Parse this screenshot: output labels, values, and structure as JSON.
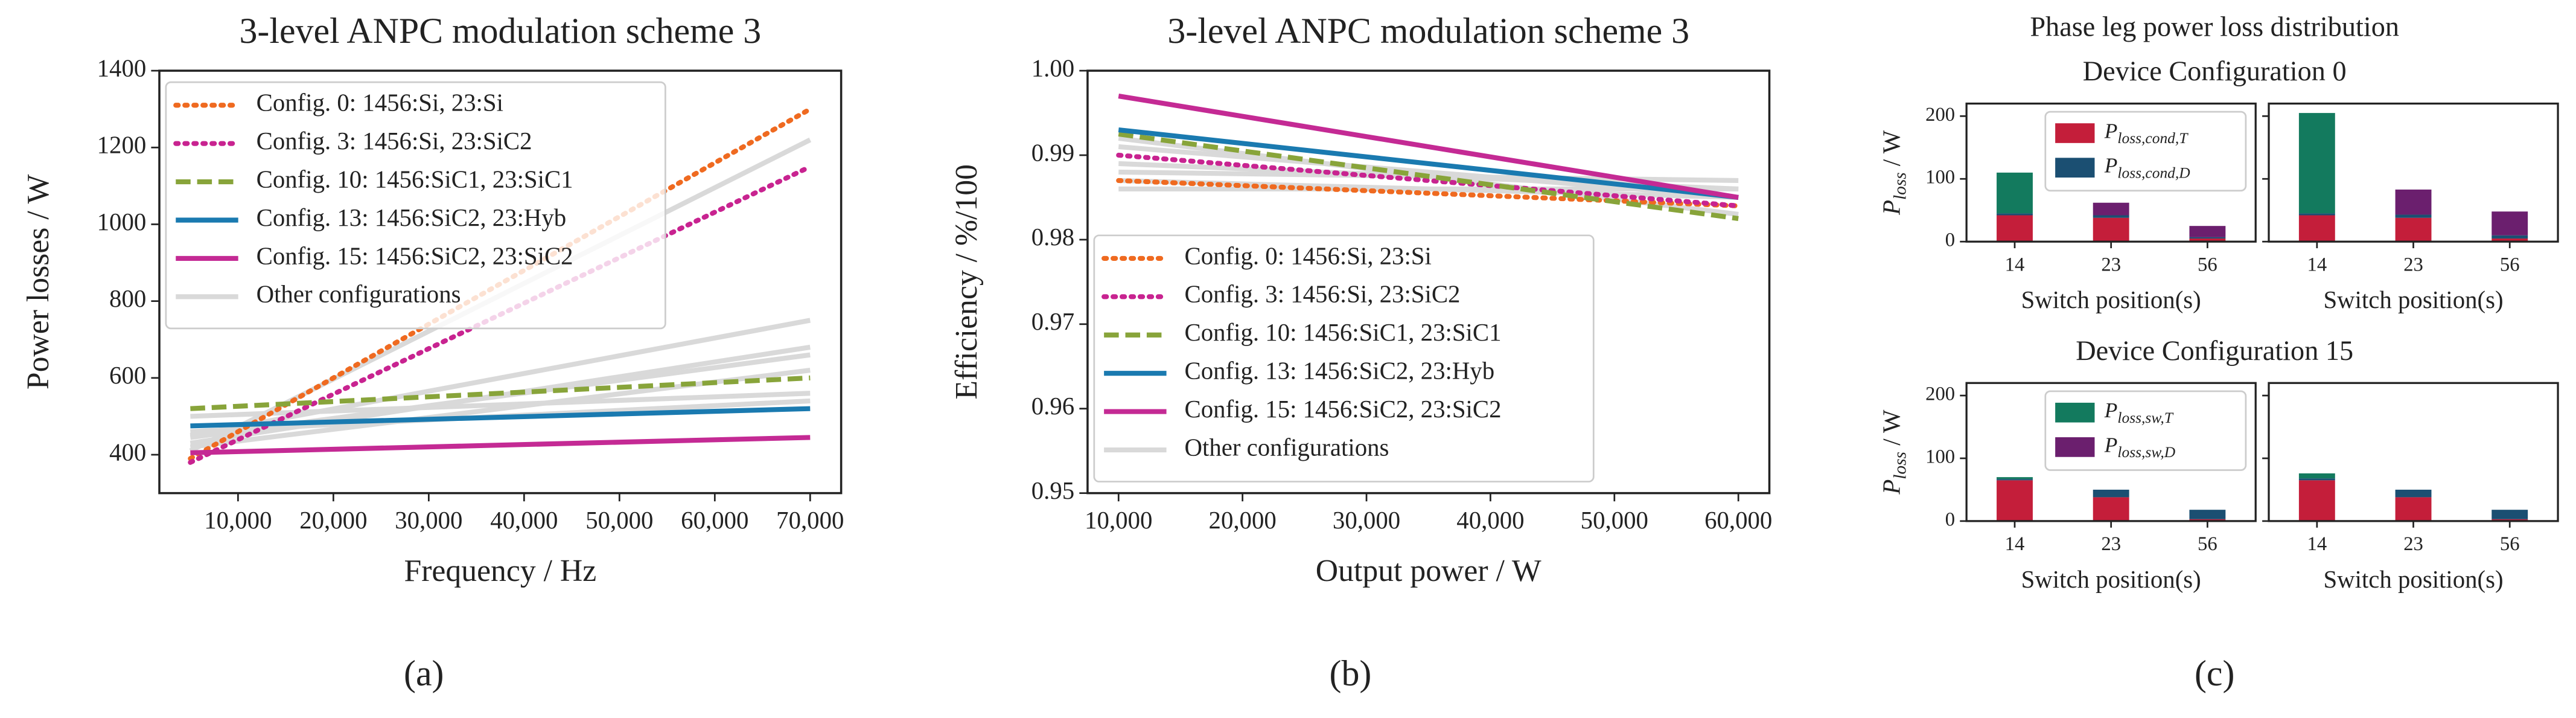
{
  "figure_title": "Phase leg power loss distribution",
  "subplot_titles": [
    "Device Configuration 0",
    "Device Configuration 15"
  ],
  "panel_labels": [
    "(a)",
    "(b)",
    "(c)"
  ],
  "loss_components": [
    {
      "symbol": "P",
      "sub": "loss,cond,T",
      "color": "#c41e3a"
    },
    {
      "symbol": "P",
      "sub": "loss,cond,D",
      "color": "#1b4f72"
    },
    {
      "symbol": "P",
      "sub": "loss,sw,T",
      "color": "#137a5e"
    },
    {
      "symbol": "P",
      "sub": "loss,sw,D",
      "color": "#6b1f6e"
    }
  ],
  "chart_data": [
    {
      "type": "line",
      "title": "3-level ANPC modulation scheme 3",
      "xlabel": "Frequency / Hz",
      "ylabel": "Power losses / W",
      "x": [
        5000,
        70000
      ],
      "xlim": [
        1750,
        73250
      ],
      "ylim": [
        300,
        1400
      ],
      "xticks": [
        {
          "value": 10000,
          "label": "10,000"
        },
        {
          "value": 20000,
          "label": "20,000"
        },
        {
          "value": 30000,
          "label": "30,000"
        },
        {
          "value": 40000,
          "label": "40,000"
        },
        {
          "value": 50000,
          "label": "50,000"
        },
        {
          "value": 60000,
          "label": "60,000"
        },
        {
          "value": 70000,
          "label": "70,000"
        }
      ],
      "yticks": [
        400,
        600,
        800,
        1000,
        1200,
        1400
      ],
      "legend": "upper left",
      "others": {
        "name": "Other configurations",
        "color": "#d9d9d9",
        "lines": [
          [
            450,
            750
          ],
          [
            430,
            680
          ],
          [
            445,
            660
          ],
          [
            420,
            620
          ],
          [
            500,
            560
          ],
          [
            460,
            540
          ],
          [
            410,
            1220
          ]
        ]
      },
      "series": [
        {
          "name": "Config. 0: 1456:Si, 23:Si",
          "color": "#ef6a20",
          "linestyle": "dotted",
          "values": [
            390,
            1300
          ]
        },
        {
          "name": "Config. 3: 1456:Si, 23:SiC2",
          "color": "#c82390",
          "linestyle": "dotted",
          "values": [
            380,
            1150
          ]
        },
        {
          "name": "Config. 10: 1456:SiC1, 23:SiC1",
          "color": "#88a43a",
          "linestyle": "dashed",
          "values": [
            520,
            600
          ]
        },
        {
          "name": "Config. 13: 1456:SiC2, 23:Hyb",
          "color": "#1a7ab0",
          "linestyle": "solid",
          "values": [
            475,
            520
          ]
        },
        {
          "name": "Config. 15: 1456:SiC2, 23:SiC2",
          "color": "#c42a94",
          "linestyle": "solid",
          "values": [
            405,
            445
          ]
        }
      ]
    },
    {
      "type": "line",
      "title": "3-level ANPC modulation scheme 3",
      "xlabel": "Output power / W",
      "ylabel": "Efficiency / %/100",
      "x": [
        10000,
        60000
      ],
      "xlim": [
        7500,
        62500
      ],
      "ylim": [
        0.95,
        1.0
      ],
      "xticks": [
        {
          "value": 10000,
          "label": "10,000"
        },
        {
          "value": 20000,
          "label": "20,000"
        },
        {
          "value": 30000,
          "label": "30,000"
        },
        {
          "value": 40000,
          "label": "40,000"
        },
        {
          "value": 50000,
          "label": "50,000"
        },
        {
          "value": 60000,
          "label": "60,000"
        }
      ],
      "yticks": [
        0.95,
        0.96,
        0.97,
        0.98,
        0.99,
        {
          "value": 1.0,
          "label": "1.00"
        }
      ],
      "legend": "lower left",
      "others": {
        "name": "Other configurations",
        "color": "#d9d9d9",
        "lines": [
          [
            0.991,
            0.985
          ],
          [
            0.989,
            0.986
          ],
          [
            0.986,
            0.986
          ],
          [
            0.988,
            0.987
          ],
          [
            0.992,
            0.983
          ],
          [
            0.987,
            0.985
          ]
        ]
      },
      "series": [
        {
          "name": "Config. 0: 1456:Si, 23:Si",
          "color": "#ef6a20",
          "linestyle": "dotted",
          "values": [
            0.987,
            0.984
          ]
        },
        {
          "name": "Config. 3: 1456:Si, 23:SiC2",
          "color": "#c82390",
          "linestyle": "dotted",
          "values": [
            0.99,
            0.984
          ]
        },
        {
          "name": "Config. 10: 1456:SiC1, 23:SiC1",
          "color": "#88a43a",
          "linestyle": "dashed",
          "values": [
            0.9925,
            0.9825
          ]
        },
        {
          "name": "Config. 13: 1456:SiC2, 23:Hyb",
          "color": "#1a7ab0",
          "linestyle": "solid",
          "values": [
            0.993,
            0.985
          ]
        },
        {
          "name": "Config. 15: 1456:SiC2, 23:SiC2",
          "color": "#c42a94",
          "linestyle": "solid",
          "values": [
            0.997,
            0.985
          ]
        }
      ]
    },
    {
      "type": "bar",
      "stacked": true,
      "ylabel": {
        "symbol": "P",
        "sub": "loss",
        "unit": " / W"
      },
      "xlabel": "Switch position(s)",
      "categories": [
        "14",
        "23",
        "56"
      ],
      "ylim": [
        0,
        220
      ],
      "yticks": [
        0,
        100,
        200
      ],
      "legend_entries": [
        0,
        1
      ],
      "series": [
        {
          "values": [
            42,
            38,
            5
          ]
        },
        {
          "values": [
            3,
            4,
            2
          ]
        },
        {
          "values": [
            65,
            0,
            0
          ]
        },
        {
          "values": [
            0,
            20,
            18
          ]
        }
      ]
    },
    {
      "type": "bar",
      "stacked": true,
      "xlabel": "Switch position(s)",
      "categories": [
        "14",
        "23",
        "56"
      ],
      "ylim": [
        0,
        220
      ],
      "yticks": [
        0,
        100,
        200
      ],
      "series": [
        {
          "values": [
            42,
            38,
            5
          ]
        },
        {
          "values": [
            3,
            5,
            5
          ]
        },
        {
          "values": [
            160,
            0,
            0
          ]
        },
        {
          "values": [
            0,
            40,
            38
          ]
        }
      ]
    },
    {
      "type": "bar",
      "stacked": true,
      "ylabel": {
        "symbol": "P",
        "sub": "loss",
        "unit": " / W"
      },
      "xlabel": "Switch position(s)",
      "categories": [
        "14",
        "23",
        "56"
      ],
      "ylim": [
        0,
        220
      ],
      "yticks": [
        0,
        100,
        200
      ],
      "legend_entries": [
        2,
        3
      ],
      "series": [
        {
          "values": [
            65,
            38,
            3
          ]
        },
        {
          "values": [
            2,
            12,
            15
          ]
        },
        {
          "values": [
            3,
            0,
            0
          ]
        },
        {
          "values": [
            0,
            0,
            0
          ]
        }
      ]
    },
    {
      "type": "bar",
      "stacked": true,
      "xlabel": "Switch position(s)",
      "categories": [
        "14",
        "23",
        "56"
      ],
      "ylim": [
        0,
        220
      ],
      "yticks": [
        0,
        100,
        200
      ],
      "series": [
        {
          "values": [
            65,
            38,
            3
          ]
        },
        {
          "values": [
            3,
            12,
            15
          ]
        },
        {
          "values": [
            8,
            0,
            0
          ]
        },
        {
          "values": [
            0,
            0,
            0
          ]
        }
      ]
    }
  ]
}
